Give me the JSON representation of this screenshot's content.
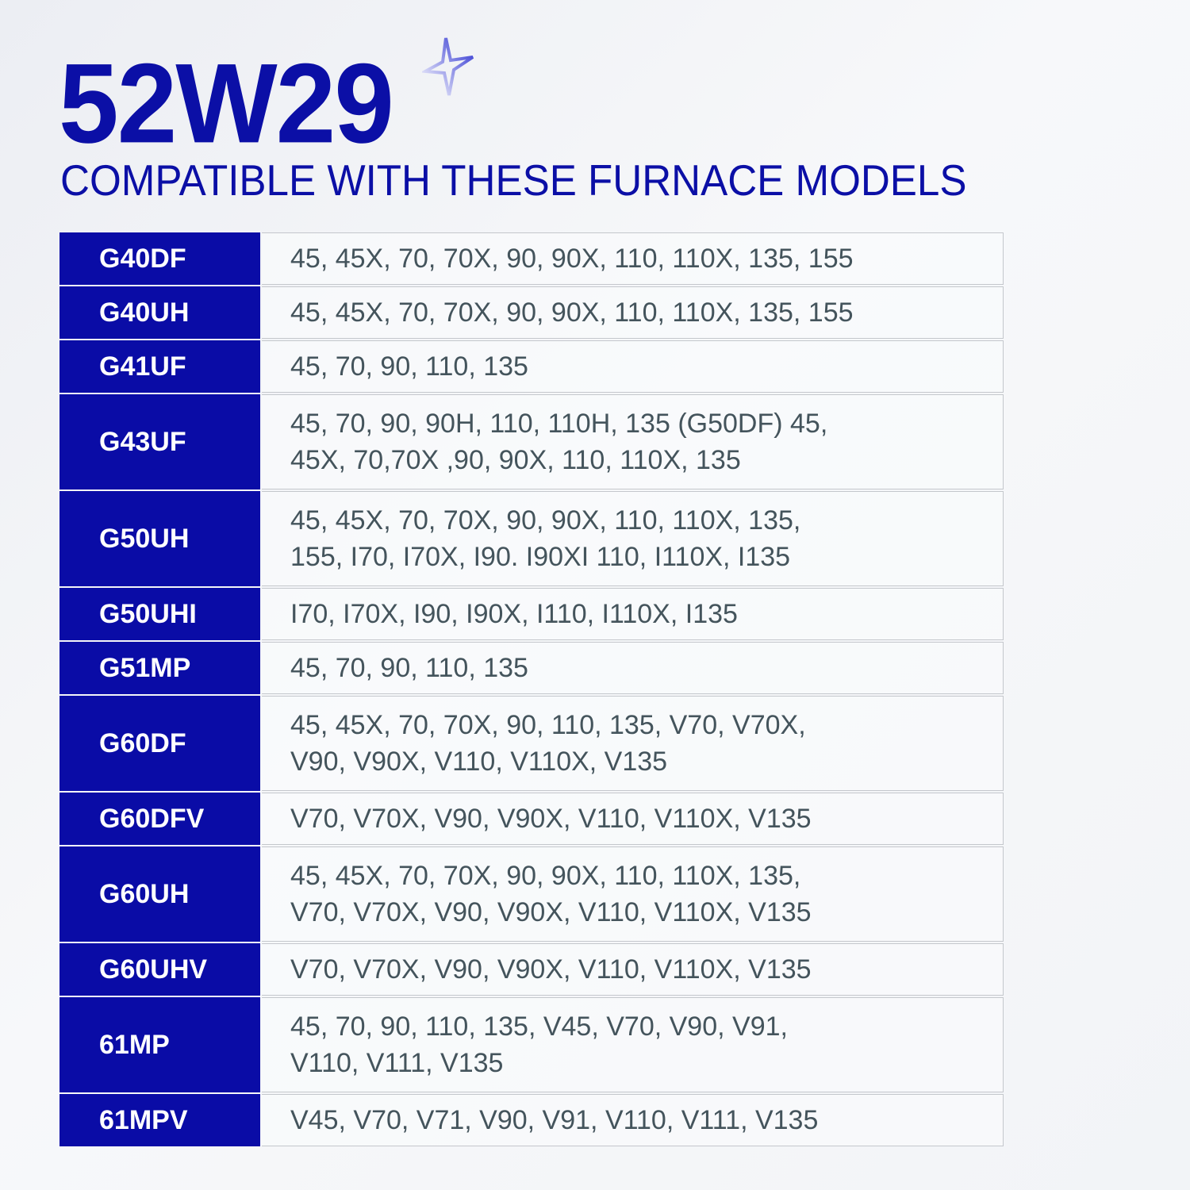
{
  "title": "52W29",
  "subtitle": "COMPATIBLE WITH THESE FURNACE MODELS",
  "accent_color": "#0b0fa6",
  "icon": "sparkle-star-icon",
  "rows": [
    {
      "model": "G40DF",
      "values": "45, 45X, 70, 70X, 90, 90X, 110, 110X, 135, 155"
    },
    {
      "model": "G40UH",
      "values": "45, 45X, 70, 70X, 90, 90X, 110, 110X, 135, 155"
    },
    {
      "model": "G41UF",
      "values": "45, 70, 90, 110, 135"
    },
    {
      "model": "G43UF",
      "values": "45, 70, 90, 90H, 110, 110H, 135 (G50DF) 45, 45X, 70,70X ,90, 90X, 110, 110X, 135"
    },
    {
      "model": "G50UH",
      "values": "45, 45X, 70, 70X, 90, 90X, 110, 110X, 135, 155, I70, I70X, I90. I90XI 110, I110X, I135"
    },
    {
      "model": "G50UHI",
      "values": "I70, I70X, I90, I90X, I110, I110X, I135"
    },
    {
      "model": "G51MP",
      "values": "45, 70, 90, 110, 135"
    },
    {
      "model": "G60DF",
      "values": "45, 45X, 70, 70X, 90, 110, 135, V70, V70X, V90, V90X, V110, V110X, V135"
    },
    {
      "model": "G60DFV",
      "values": "V70, V70X, V90, V90X, V110, V110X, V135"
    },
    {
      "model": "G60UH",
      "values": "45, 45X, 70, 70X, 90, 90X, 110, 110X, 135, V70, V70X, V90, V90X, V110, V110X, V135"
    },
    {
      "model": "G60UHV",
      "values": "V70, V70X, V90, V90X, V110, V110X, V135"
    },
    {
      "model": "61MP",
      "values": "45, 70, 90, 110, 135, V45, V70, V90, V91, V110, V111, V135"
    },
    {
      "model": "61MPV",
      "values": "V45, V70, V71, V90, V91, V110, V111, V135"
    }
  ]
}
